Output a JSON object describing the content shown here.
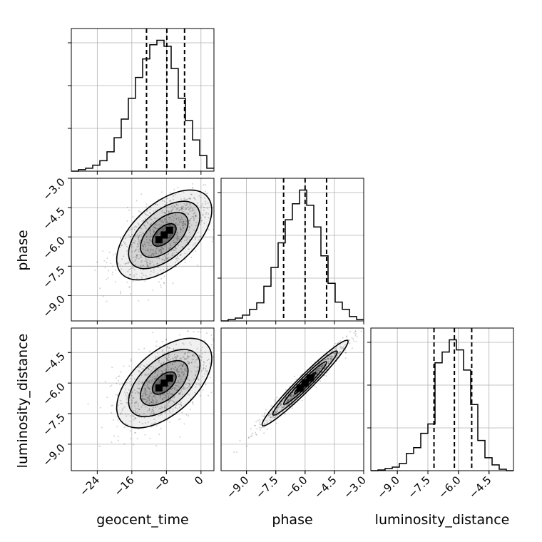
{
  "chart_data": {
    "type": "corner",
    "parameters": [
      "geocent_time",
      "phase",
      "luminosity_distance"
    ],
    "axis_labels": {
      "bottom": [
        "geocent_time",
        "phase",
        "luminosity_distance"
      ],
      "left": [
        "phase",
        "luminosity_distance"
      ]
    },
    "ranges": {
      "geocent_time": [
        -30,
        3
      ],
      "phase": [
        -10.3,
        -3.0
      ],
      "luminosity_distance": [
        -10.3,
        -3.3
      ]
    },
    "ticks": {
      "geocent_time": [
        "-24",
        "-16",
        "-8",
        "0"
      ],
      "phase": [
        "-9.0",
        "-7.5",
        "-6.0",
        "-4.5",
        "-3.0"
      ],
      "luminosity_distance": [
        "-9.0",
        "-7.5",
        "-6.0",
        "-4.5"
      ]
    },
    "grid": true,
    "histograms": [
      {
        "parameter": "geocent_time",
        "bin_edges": [
          -30,
          -28.35,
          -26.7,
          -25.05,
          -23.4,
          -21.75,
          -20.1,
          -18.45,
          -16.8,
          -15.15,
          -13.5,
          -11.85,
          -10.2,
          -8.55,
          -6.9,
          -5.25,
          -3.6,
          -1.95,
          -0.3,
          1.35,
          3.0
        ],
        "counts": [
          0,
          2,
          4,
          8,
          14,
          26,
          45,
          70,
          98,
          126,
          151,
          170,
          176,
          168,
          138,
          98,
          68,
          42,
          21,
          4
        ],
        "quantile_lines": [
          -12.6,
          -7.9,
          -3.8
        ]
      },
      {
        "parameter": "phase",
        "bin_edges": [
          -10.3,
          -9.935,
          -9.57,
          -9.205,
          -8.84,
          -8.475,
          -8.11,
          -7.745,
          -7.38,
          -7.015,
          -6.65,
          -6.285,
          -5.92,
          -5.555,
          -5.19,
          -4.825,
          -4.46,
          -4.095,
          -3.73,
          -3.365,
          -3.0
        ],
        "counts": [
          0,
          2,
          4,
          8,
          16,
          25,
          48,
          74,
          108,
          140,
          162,
          181,
          160,
          130,
          90,
          52,
          26,
          16,
          6,
          2
        ],
        "quantile_lines": [
          -7.1,
          -6.0,
          -4.9
        ]
      },
      {
        "parameter": "luminosity_distance",
        "bin_edges": [
          -10.3,
          -9.95,
          -9.6,
          -9.25,
          -8.9,
          -8.55,
          -8.2,
          -7.85,
          -7.5,
          -7.15,
          -6.8,
          -6.45,
          -6.1,
          -5.75,
          -5.4,
          -5.05,
          -4.7,
          -4.35,
          -4.0,
          -3.65,
          -3.3
        ],
        "counts": [
          0,
          1,
          3,
          5,
          10,
          24,
          32,
          52,
          65,
          150,
          165,
          182,
          168,
          140,
          92,
          42,
          18,
          8,
          2,
          0
        ],
        "quantile_lines": [
          -7.2,
          -6.2,
          -5.35
        ]
      }
    ],
    "contour_panels": [
      {
        "x": "geocent_time",
        "y": "phase",
        "center": [
          -8.5,
          -5.9
        ],
        "sd": [
          5.5,
          1.15
        ],
        "correlation": 0.55
      },
      {
        "x": "geocent_time",
        "y": "luminosity_distance",
        "center": [
          -8.5,
          -6.0
        ],
        "sd": [
          5.5,
          1.1
        ],
        "correlation": 0.55
      },
      {
        "x": "phase",
        "y": "luminosity_distance",
        "center": [
          -6.0,
          -6.0
        ],
        "sd": [
          1.1,
          1.05
        ],
        "correlation": 0.97
      }
    ],
    "contour_levels_sigma": [
      0.5,
      1.0,
      1.5,
      2.0
    ]
  }
}
